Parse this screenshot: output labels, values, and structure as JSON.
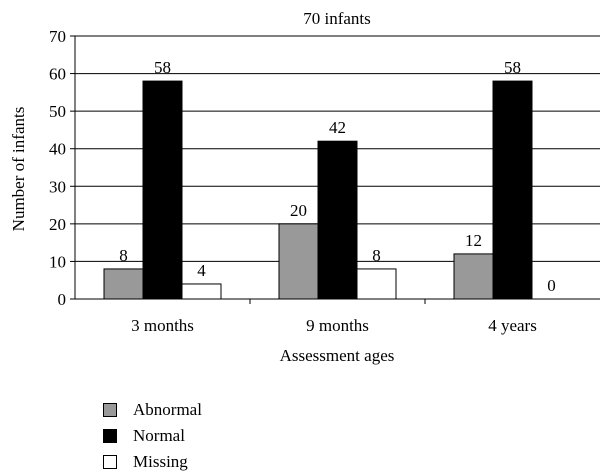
{
  "chart_data": {
    "type": "bar",
    "title": "70 infants",
    "xlabel": "Assessment ages",
    "ylabel": "Number of infants",
    "categories": [
      "3 months",
      "9 months",
      "4 years"
    ],
    "ylim": [
      0,
      70
    ],
    "yticks": [
      0,
      10,
      20,
      30,
      40,
      50,
      60,
      70
    ],
    "grid": true,
    "legend_position": "bottom-left",
    "series": [
      {
        "name": "Abnormal",
        "color": "#999999",
        "values": [
          8,
          20,
          12
        ]
      },
      {
        "name": "Normal",
        "color": "#000000",
        "values": [
          58,
          42,
          58
        ]
      },
      {
        "name": "Missing",
        "color": "#ffffff",
        "values": [
          4,
          8,
          0
        ]
      }
    ]
  }
}
